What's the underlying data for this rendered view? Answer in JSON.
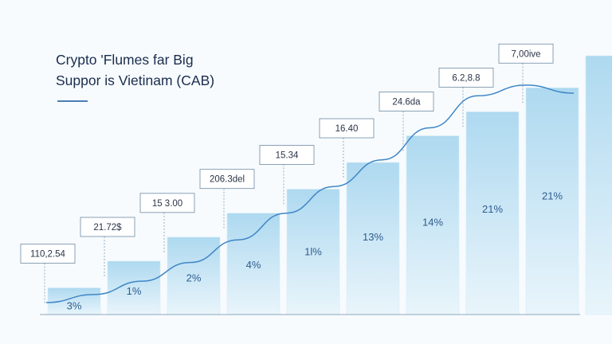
{
  "chart_data": {
    "type": "bar",
    "title": "Crypto 'Flumes far Big Suppor is Vietinam (CAB)",
    "title_lines": [
      "Crypto 'Flumes far Big",
      "Suppor is Vietinam (CAB)"
    ],
    "values": [
      1.0,
      2.0,
      2.9,
      3.8,
      4.7,
      5.7,
      6.7,
      7.6,
      8.5,
      9.7
    ],
    "bar_labels": [
      "3%",
      "1%",
      "2%",
      "4%",
      "1l%",
      "13%",
      "14%",
      "21%",
      "21%",
      ""
    ],
    "callouts": [
      "110,2.54",
      "21.72$",
      "15 3.00",
      "206.3del",
      "15.34",
      "16.40",
      "24.6da",
      "6.2,8.8",
      "7,00ive",
      ""
    ],
    "trend": [
      0.45,
      0.75,
      1.25,
      1.95,
      2.8,
      3.8,
      4.8,
      5.8,
      7.0,
      8.2,
      8.6,
      8.3
    ],
    "ylim": [
      0,
      10
    ],
    "grid": false,
    "colors": {
      "bar_top": "#aed9f0",
      "bar_bottom": "#e9f5fb",
      "line": "#3f86c6",
      "title": "#1a2c4e"
    }
  }
}
